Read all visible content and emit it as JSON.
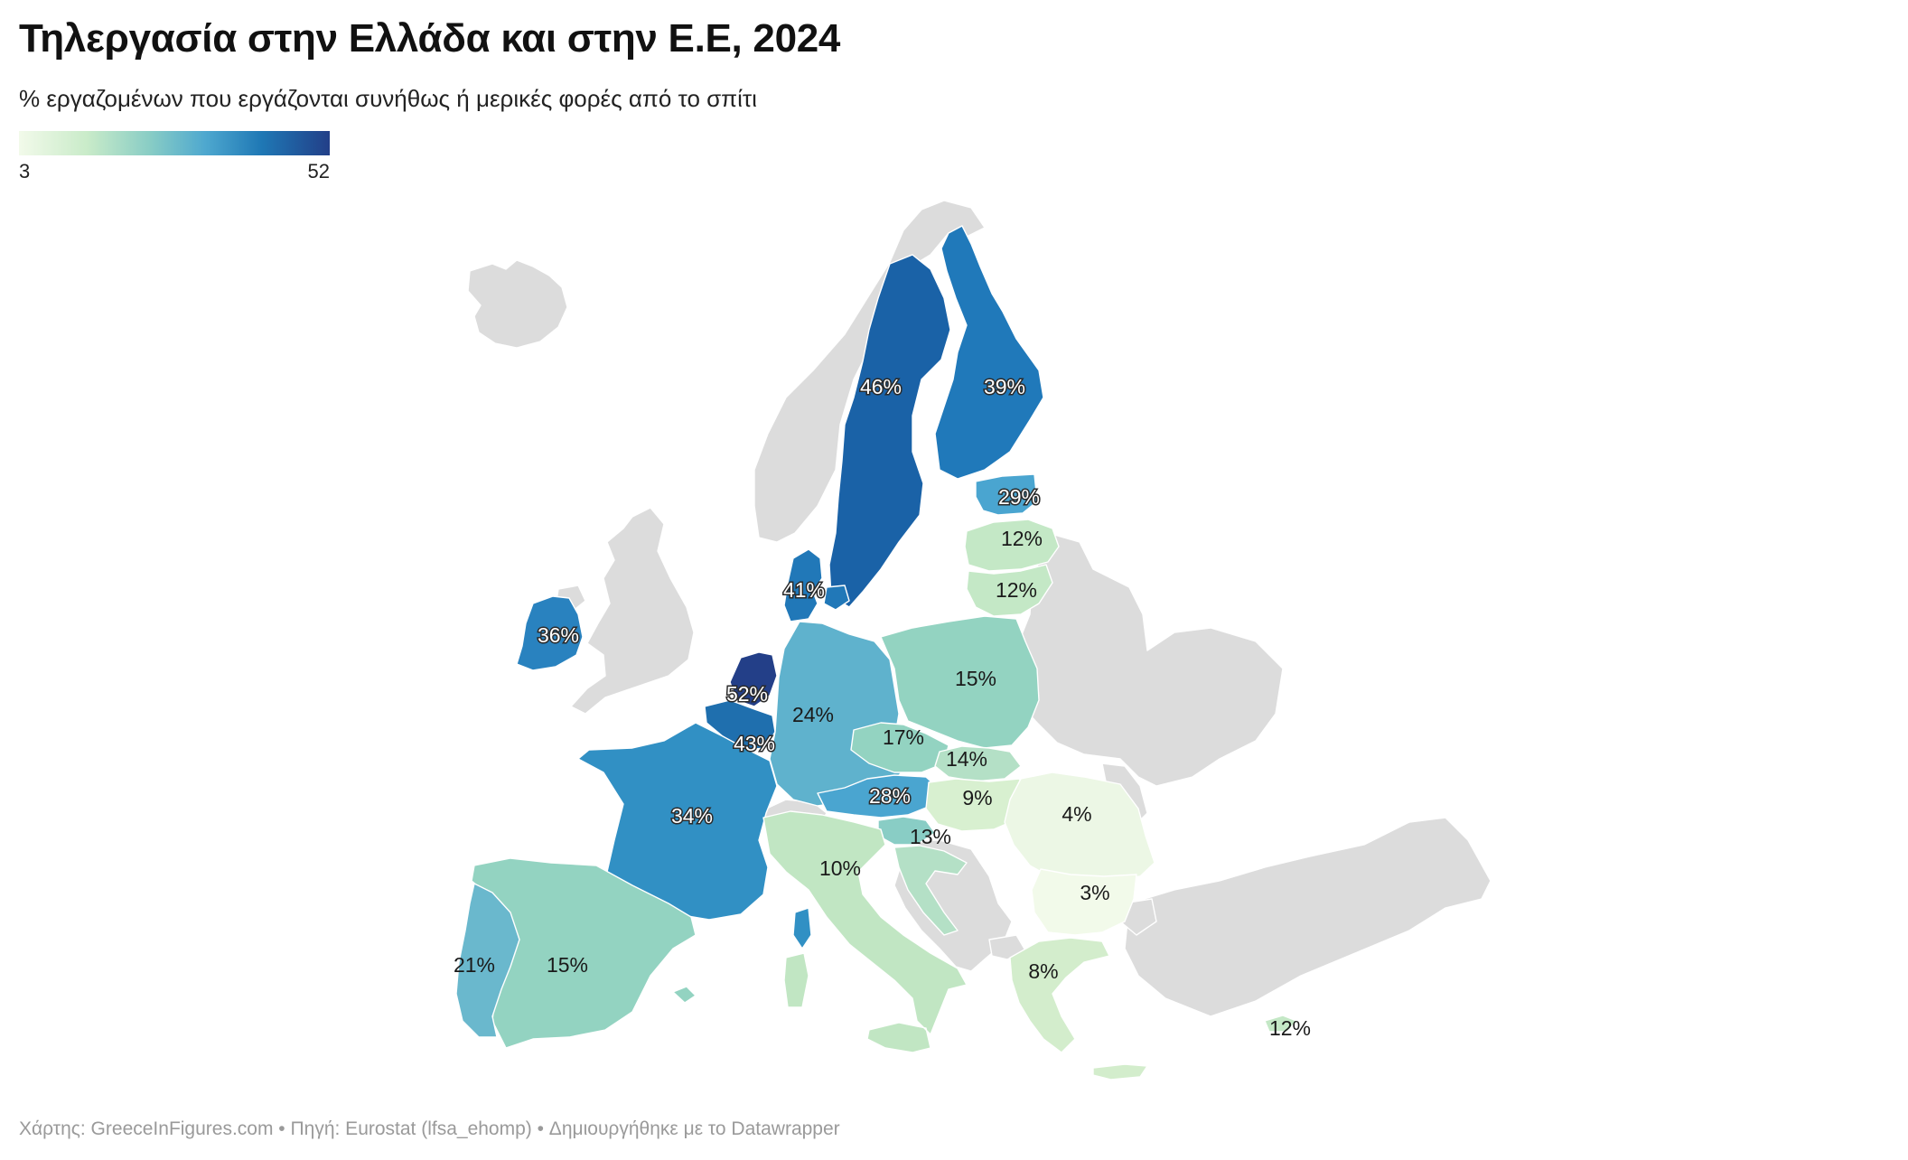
{
  "title": "Τηλεργασία στην Ελλάδα και στην Ε.Ε, 2024",
  "subtitle": "% εργαζομένων που εργάζονται συνήθως ή μερικές φορές από το σπίτι",
  "legend": {
    "min": "3",
    "max": "52",
    "colors": [
      "#f2faea",
      "#c9ebc9",
      "#89cdc5",
      "#4ea8cf",
      "#1f78b5",
      "#223f88"
    ]
  },
  "footer": "Χάρτης: GreeceInFigures.com • Πηγή: Eurostat (lfsa_ehomp) • Δημιουργήθηκε με το Datawrapper",
  "non_eu_color": "#dcdcdc",
  "chart_data": {
    "type": "choropleth",
    "unit": "%",
    "year": 2024,
    "scale": [
      3,
      52
    ],
    "regions": [
      {
        "id": "NL",
        "value": 52,
        "label": "52%"
      },
      {
        "id": "SE",
        "value": 46,
        "label": "46%"
      },
      {
        "id": "BE",
        "value": 43,
        "label": "43%"
      },
      {
        "id": "DK",
        "value": 41,
        "label": "41%"
      },
      {
        "id": "FI",
        "value": 39,
        "label": "39%"
      },
      {
        "id": "IE",
        "value": 36,
        "label": "36%"
      },
      {
        "id": "FR",
        "value": 34,
        "label": "34%"
      },
      {
        "id": "EE",
        "value": 29,
        "label": "29%"
      },
      {
        "id": "AT",
        "value": 28,
        "label": "28%"
      },
      {
        "id": "DE",
        "value": 24,
        "label": "24%"
      },
      {
        "id": "PT",
        "value": 21,
        "label": "21%"
      },
      {
        "id": "CZ",
        "value": 17,
        "label": "17%"
      },
      {
        "id": "PL",
        "value": 15,
        "label": "15%"
      },
      {
        "id": "ES",
        "value": 15,
        "label": "15%"
      },
      {
        "id": "SK",
        "value": 14,
        "label": "14%"
      },
      {
        "id": "SI",
        "value": 13,
        "label": "13%"
      },
      {
        "id": "LV",
        "value": 12,
        "label": "12%"
      },
      {
        "id": "LT",
        "value": 12,
        "label": "12%"
      },
      {
        "id": "CY",
        "value": 12,
        "label": "12%"
      },
      {
        "id": "IT",
        "value": 10,
        "label": "10%"
      },
      {
        "id": "HU",
        "value": 9,
        "label": "9%"
      },
      {
        "id": "GR",
        "value": 8,
        "label": "8%"
      },
      {
        "id": "RO",
        "value": 4,
        "label": "4%"
      },
      {
        "id": "BG",
        "value": 3,
        "label": "3%"
      }
    ]
  }
}
